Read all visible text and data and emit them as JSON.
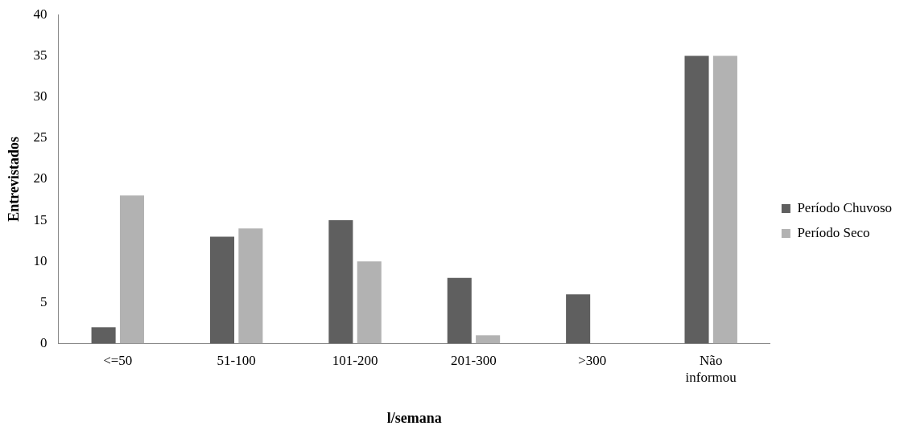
{
  "chart_data": {
    "type": "bar",
    "xlabel": "l/semana",
    "ylabel": "Entrevistados",
    "categories": [
      "<=50",
      "51-100",
      "101-200",
      "201-300",
      ">300",
      "Não informou"
    ],
    "series": [
      {
        "name": "Período Chuvoso",
        "color": "#5f5f5f",
        "values": [
          2,
          13,
          15,
          8,
          6,
          35
        ]
      },
      {
        "name": "Período Seco",
        "color": "#b2b2b2",
        "values": [
          18,
          14,
          10,
          1,
          0,
          35
        ]
      }
    ],
    "ylim": [
      0,
      40
    ],
    "yticks": [
      0,
      5,
      10,
      15,
      20,
      25,
      30,
      35,
      40
    ],
    "grid": false,
    "legend": "right"
  }
}
